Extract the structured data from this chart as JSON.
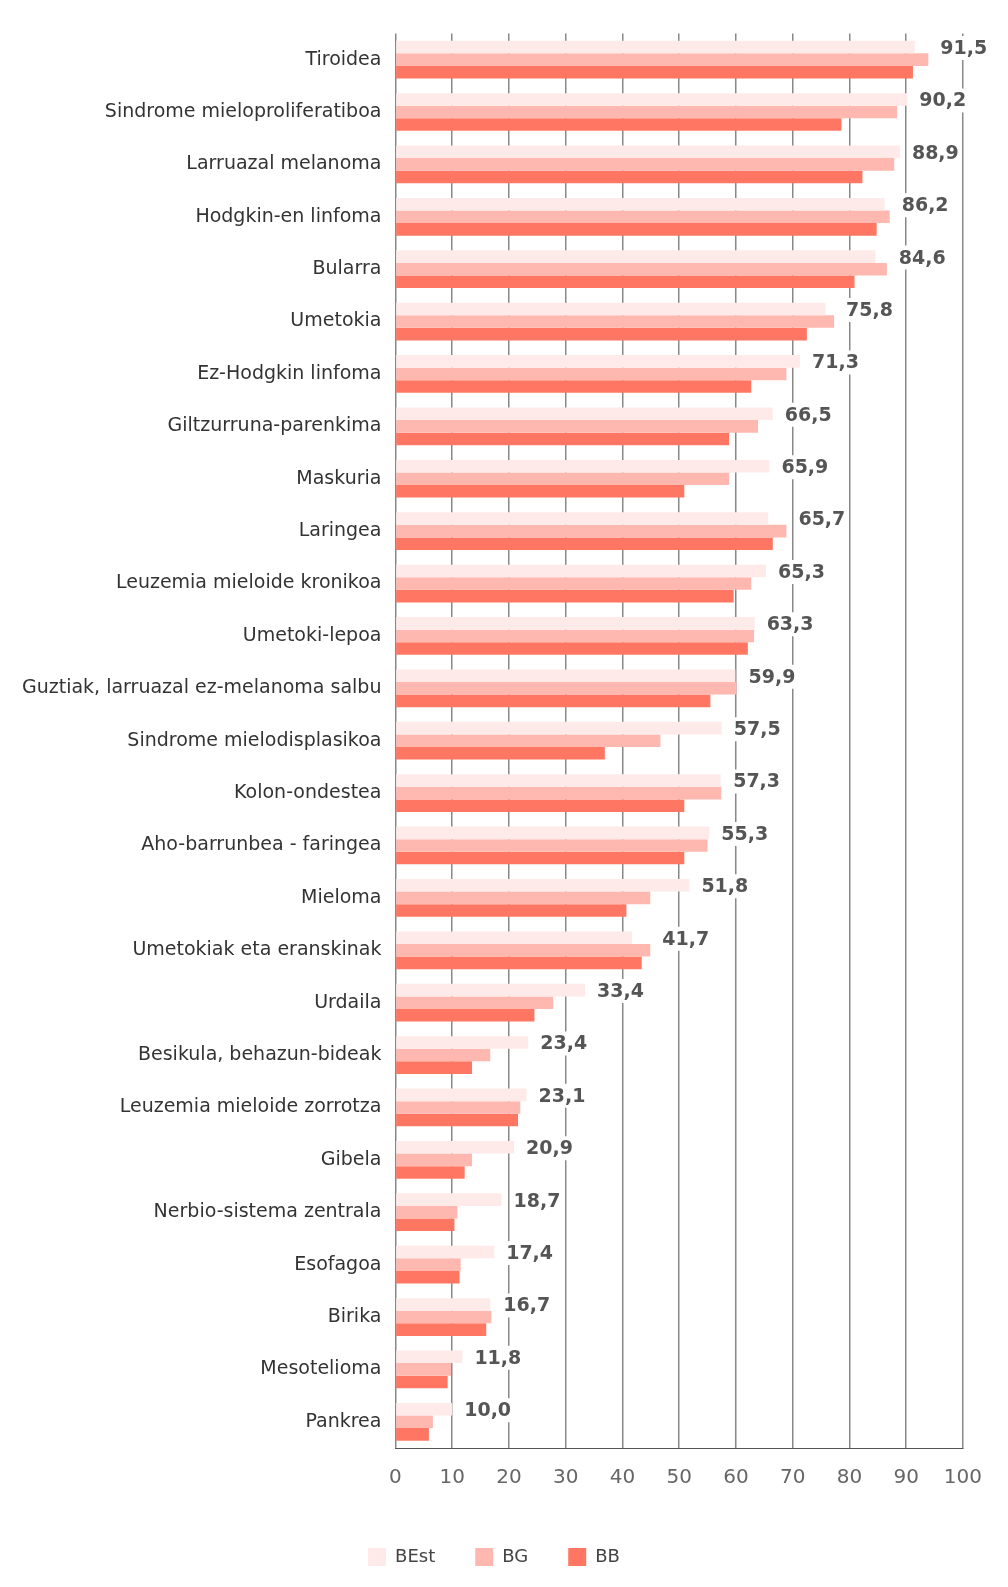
{
  "chart_data": {
    "type": "bar",
    "orientation": "horizontal",
    "categories": [
      "Tiroidea",
      "Sindrome mieloproliferatiboa",
      "Larruazal melanoma",
      "Hodgkin-en linfoma",
      "Bularra",
      "Umetokia",
      "Ez-Hodgkin linfoma",
      "Giltzurruna-parenkima",
      "Maskuria",
      "Laringea",
      "Leuzemia mieloide kronikoa",
      "Umetoki-lepoa",
      "Guztiak, larruazal ez-melanoma salbu",
      "Sindrome mielodisplasikoa",
      "Kolon-ondestea",
      "Aho-barrunbea - faringea",
      "Mieloma",
      "Umetokiak eta eranskinak",
      "Urdaila",
      "Besikula, behazun-bideak",
      "Leuzemia mieloide zorrotza",
      "Gibela",
      "Nerbio-sistema zentrala",
      "Esofagoa",
      "Birika",
      "Mesotelioma",
      "Pankrea"
    ],
    "series": [
      {
        "name": "BEst",
        "color": "#ffeaea",
        "values": [
          91.5,
          90.2,
          88.9,
          86.2,
          84.6,
          75.8,
          71.3,
          66.5,
          65.9,
          65.7,
          65.3,
          63.3,
          59.9,
          57.5,
          57.3,
          55.3,
          51.8,
          41.7,
          33.4,
          23.4,
          23.1,
          20.9,
          18.7,
          17.4,
          16.7,
          11.8,
          10.0
        ],
        "value_labels": [
          "91,5",
          "90,2",
          "88,9",
          "86,2",
          "84,6",
          "75,8",
          "71,3",
          "66,5",
          "65,9",
          "65,7",
          "65,3",
          "63,3",
          "59,9",
          "57,5",
          "57,3",
          "55,3",
          "51,8",
          "41,7",
          "33,4",
          "23,4",
          "23,1",
          "20,9",
          "18,7",
          "17,4",
          "16,7",
          "11,8",
          "10,0"
        ]
      },
      {
        "name": "BG",
        "color": "#ffb8b0",
        "values": [
          93.9,
          88.4,
          87.9,
          87.1,
          86.6,
          77.3,
          68.9,
          63.9,
          58.8,
          68.9,
          62.7,
          63.2,
          60.1,
          46.7,
          57.4,
          55.0,
          44.9,
          44.9,
          27.8,
          16.7,
          22.0,
          13.5,
          10.9,
          11.5,
          16.9,
          9.8,
          6.6
        ]
      },
      {
        "name": "BB",
        "color": "#ff7763",
        "values": [
          91.2,
          78.6,
          82.3,
          84.8,
          80.9,
          72.5,
          62.7,
          58.8,
          50.9,
          66.5,
          59.6,
          62.1,
          55.5,
          36.9,
          50.9,
          50.9,
          40.7,
          43.4,
          24.5,
          13.5,
          21.6,
          12.2,
          10.4,
          11.3,
          16.0,
          9.2,
          5.9
        ]
      }
    ],
    "xlim": [
      0,
      100
    ],
    "xticks": [
      0,
      10,
      20,
      30,
      40,
      50,
      60,
      70,
      80,
      90,
      100
    ],
    "grid": "x",
    "legend": "bottom"
  }
}
